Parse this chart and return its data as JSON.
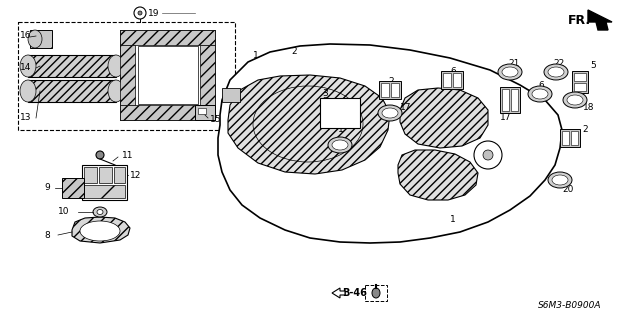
{
  "bg_color": "#ffffff",
  "fig_width": 6.4,
  "fig_height": 3.19,
  "dpi": 100,
  "fr_label": "FR.",
  "diagram_code": "S6M3-B0900A",
  "b46_label": "B-46",
  "line_color": "#000000",
  "text_color": "#000000",
  "font_size_label": 6.5,
  "font_size_code": 6.5,
  "font_size_fr": 8,
  "font_size_b46": 7
}
